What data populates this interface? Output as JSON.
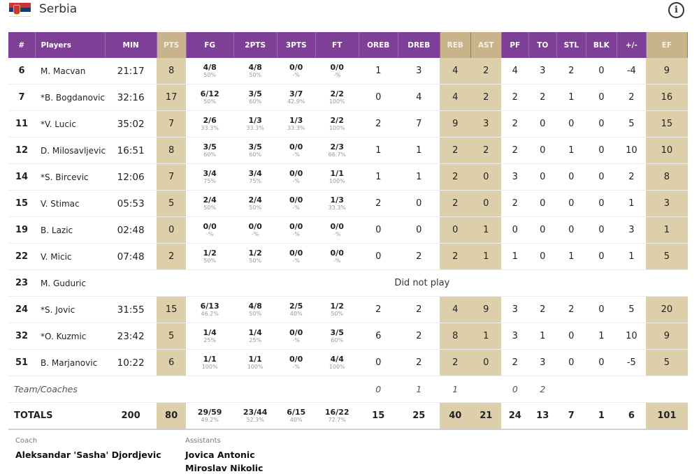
{
  "team": {
    "name": "Serbia",
    "flag_icon": "serbia-flag-icon",
    "info_icon": "info-icon"
  },
  "colors": {
    "header_bg": "#7e3f96",
    "highlight_header": "#c9b38b",
    "highlight_cell": "#ddcfa9"
  },
  "headers": [
    "#",
    "Players",
    "MIN",
    "PTS",
    "FG",
    "2PTS",
    "3PTS",
    "FT",
    "OREB",
    "DREB",
    "REB",
    "AST",
    "PF",
    "TO",
    "STL",
    "BLK",
    "+/-",
    "EF"
  ],
  "players": [
    {
      "num": "6",
      "name": "M. Macvan",
      "min": "21:17",
      "pts": "8",
      "fg": "4/8",
      "fg_pct": "50%",
      "p2": "4/8",
      "p2_pct": "50%",
      "p3": "0/0",
      "p3_pct": "-%",
      "ft": "0/0",
      "ft_pct": "-%",
      "oreb": "1",
      "dreb": "3",
      "reb": "4",
      "ast": "2",
      "pf": "4",
      "to": "3",
      "stl": "2",
      "blk": "0",
      "pm": "-4",
      "ef": "9"
    },
    {
      "num": "7",
      "name": "*B. Bogdanovic",
      "min": "32:16",
      "pts": "17",
      "fg": "6/12",
      "fg_pct": "50%",
      "p2": "3/5",
      "p2_pct": "60%",
      "p3": "3/7",
      "p3_pct": "42.9%",
      "ft": "2/2",
      "ft_pct": "100%",
      "oreb": "0",
      "dreb": "4",
      "reb": "4",
      "ast": "2",
      "pf": "2",
      "to": "2",
      "stl": "1",
      "blk": "0",
      "pm": "2",
      "ef": "16"
    },
    {
      "num": "11",
      "name": "*V. Lucic",
      "min": "35:02",
      "pts": "7",
      "fg": "2/6",
      "fg_pct": "33.3%",
      "p2": "1/3",
      "p2_pct": "33.3%",
      "p3": "1/3",
      "p3_pct": "33.3%",
      "ft": "2/2",
      "ft_pct": "100%",
      "oreb": "2",
      "dreb": "7",
      "reb": "9",
      "ast": "3",
      "pf": "2",
      "to": "0",
      "stl": "0",
      "blk": "0",
      "pm": "5",
      "ef": "15"
    },
    {
      "num": "12",
      "name": "D. Milosavljevic",
      "min": "16:51",
      "pts": "8",
      "fg": "3/5",
      "fg_pct": "60%",
      "p2": "3/5",
      "p2_pct": "60%",
      "p3": "0/0",
      "p3_pct": "-%",
      "ft": "2/3",
      "ft_pct": "66.7%",
      "oreb": "1",
      "dreb": "1",
      "reb": "2",
      "ast": "2",
      "pf": "2",
      "to": "0",
      "stl": "1",
      "blk": "0",
      "pm": "10",
      "ef": "10"
    },
    {
      "num": "14",
      "name": "*S. Bircevic",
      "min": "12:06",
      "pts": "7",
      "fg": "3/4",
      "fg_pct": "75%",
      "p2": "3/4",
      "p2_pct": "75%",
      "p3": "0/0",
      "p3_pct": "-%",
      "ft": "1/1",
      "ft_pct": "100%",
      "oreb": "1",
      "dreb": "1",
      "reb": "2",
      "ast": "0",
      "pf": "3",
      "to": "0",
      "stl": "0",
      "blk": "0",
      "pm": "2",
      "ef": "8"
    },
    {
      "num": "15",
      "name": "V. Stimac",
      "min": "05:53",
      "pts": "5",
      "fg": "2/4",
      "fg_pct": "50%",
      "p2": "2/4",
      "p2_pct": "50%",
      "p3": "0/0",
      "p3_pct": "-%",
      "ft": "1/3",
      "ft_pct": "33.3%",
      "oreb": "2",
      "dreb": "0",
      "reb": "2",
      "ast": "0",
      "pf": "2",
      "to": "0",
      "stl": "0",
      "blk": "0",
      "pm": "1",
      "ef": "3"
    },
    {
      "num": "19",
      "name": "B. Lazic",
      "min": "02:48",
      "pts": "0",
      "fg": "0/0",
      "fg_pct": "-%",
      "p2": "0/0",
      "p2_pct": "-%",
      "p3": "0/0",
      "p3_pct": "-%",
      "ft": "0/0",
      "ft_pct": "-%",
      "oreb": "0",
      "dreb": "0",
      "reb": "0",
      "ast": "1",
      "pf": "0",
      "to": "0",
      "stl": "0",
      "blk": "0",
      "pm": "3",
      "ef": "1"
    },
    {
      "num": "22",
      "name": "V. Micic",
      "min": "07:48",
      "pts": "2",
      "fg": "1/2",
      "fg_pct": "50%",
      "p2": "1/2",
      "p2_pct": "50%",
      "p3": "0/0",
      "p3_pct": "-%",
      "ft": "0/0",
      "ft_pct": "-%",
      "oreb": "0",
      "dreb": "2",
      "reb": "2",
      "ast": "1",
      "pf": "1",
      "to": "0",
      "stl": "1",
      "blk": "0",
      "pm": "1",
      "ef": "5"
    },
    {
      "num": "23",
      "name": "M. Guduric",
      "dnp": "Did not play"
    },
    {
      "num": "24",
      "name": "*S. Jovic",
      "min": "31:55",
      "pts": "15",
      "fg": "6/13",
      "fg_pct": "46.2%",
      "p2": "4/8",
      "p2_pct": "50%",
      "p3": "2/5",
      "p3_pct": "40%",
      "ft": "1/2",
      "ft_pct": "50%",
      "oreb": "2",
      "dreb": "2",
      "reb": "4",
      "ast": "9",
      "pf": "3",
      "to": "2",
      "stl": "2",
      "blk": "0",
      "pm": "5",
      "ef": "20"
    },
    {
      "num": "32",
      "name": "*O. Kuzmic",
      "min": "23:42",
      "pts": "5",
      "fg": "1/4",
      "fg_pct": "25%",
      "p2": "1/4",
      "p2_pct": "25%",
      "p3": "0/0",
      "p3_pct": "-%",
      "ft": "3/5",
      "ft_pct": "60%",
      "oreb": "6",
      "dreb": "2",
      "reb": "8",
      "ast": "1",
      "pf": "3",
      "to": "1",
      "stl": "0",
      "blk": "1",
      "pm": "10",
      "ef": "9"
    },
    {
      "num": "51",
      "name": "B. Marjanovic",
      "min": "10:22",
      "pts": "6",
      "fg": "1/1",
      "fg_pct": "100%",
      "p2": "1/1",
      "p2_pct": "100%",
      "p3": "0/0",
      "p3_pct": "-%",
      "ft": "4/4",
      "ft_pct": "100%",
      "oreb": "0",
      "dreb": "2",
      "reb": "2",
      "ast": "0",
      "pf": "2",
      "to": "3",
      "stl": "0",
      "blk": "0",
      "pm": "-5",
      "ef": "5"
    }
  ],
  "team_row": {
    "label": "Team/Coaches",
    "oreb": "0",
    "dreb": "1",
    "reb": "1",
    "pf": "0",
    "to": "2"
  },
  "totals": {
    "label": "TOTALS",
    "min": "200",
    "pts": "80",
    "fg": "29/59",
    "fg_pct": "49.2%",
    "p2": "23/44",
    "p2_pct": "52.3%",
    "p3": "6/15",
    "p3_pct": "40%",
    "ft": "16/22",
    "ft_pct": "72.7%",
    "oreb": "15",
    "dreb": "25",
    "reb": "40",
    "ast": "21",
    "pf": "24",
    "to": "13",
    "stl": "7",
    "blk": "1",
    "pm": "6",
    "ef": "101"
  },
  "coach": {
    "label": "Coach",
    "name": "Aleksandar 'Sasha' Djordjevic"
  },
  "assistants": {
    "label": "Assistants",
    "names": [
      "Jovica Antonic",
      "Miroslav Nikolic"
    ]
  }
}
